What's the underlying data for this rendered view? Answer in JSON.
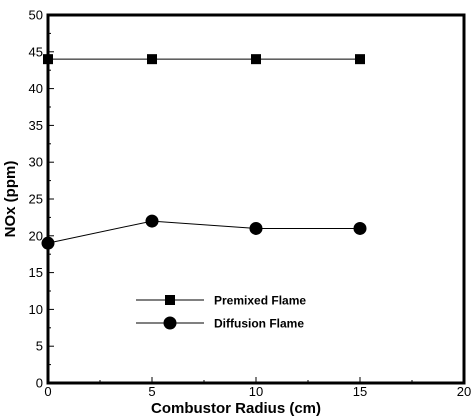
{
  "chart_data": {
    "type": "line",
    "title": "",
    "xlabel": "Combustor Radius (cm)",
    "ylabel": "NOx (ppm)",
    "xlim": [
      0,
      20
    ],
    "ylim": [
      0,
      50
    ],
    "xticks": [
      "0",
      "5",
      "10",
      "15",
      "20"
    ],
    "yticks": [
      "0",
      "5",
      "10",
      "15",
      "20",
      "25",
      "30",
      "35",
      "40",
      "45",
      "50"
    ],
    "grid": false,
    "legend_position": "lower-center",
    "series": [
      {
        "name": "Premixed Flame",
        "marker": "square",
        "color": "#000000",
        "x": [
          0,
          5,
          10,
          15
        ],
        "y": [
          44,
          44,
          44,
          44
        ]
      },
      {
        "name": "Diffusion Flame",
        "marker": "circle",
        "color": "#000000",
        "x": [
          0,
          5,
          10,
          15
        ],
        "y": [
          19,
          22,
          21,
          21
        ]
      }
    ]
  }
}
